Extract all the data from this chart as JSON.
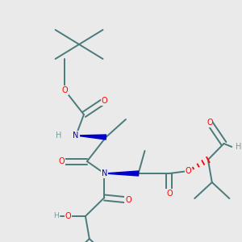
{
  "bg_color": "#eaeaea",
  "bond_color": "#4a7a7a",
  "bond_width": 1.4,
  "atom_colors": {
    "O": "#ff0000",
    "N": "#0000cc",
    "H": "#7a9a9a",
    "C": "#4a7a7a"
  }
}
